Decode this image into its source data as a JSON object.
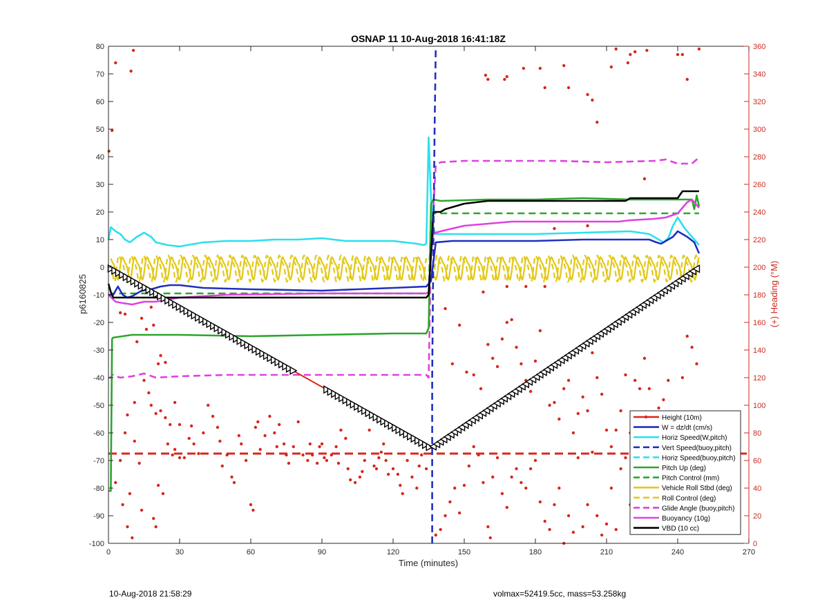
{
  "chart_data": {
    "type": "line",
    "title": "OSNAP 11 10-Aug-2018 16:41:18Z",
    "xlabel": "Time (minutes)",
    "ylabel": "p6160825",
    "y2label": "(+) Heading (°M)",
    "xlim": [
      0,
      270
    ],
    "ylim": [
      -100,
      80
    ],
    "y2lim": [
      0,
      360
    ],
    "xticks": [
      0,
      30,
      60,
      90,
      120,
      150,
      180,
      210,
      240,
      270
    ],
    "yticks": [
      -100,
      -90,
      -80,
      -70,
      -60,
      -50,
      -40,
      -30,
      -20,
      -10,
      0,
      10,
      20,
      30,
      40,
      50,
      60,
      70,
      80
    ],
    "y2ticks": [
      0,
      20,
      40,
      60,
      80,
      100,
      120,
      140,
      160,
      180,
      200,
      220,
      240,
      260,
      280,
      300,
      320,
      340,
      360
    ],
    "grid": false,
    "legend_position": "bottom-right",
    "vline_x": 136.5,
    "hline_y": -67.5,
    "series": [
      {
        "name": "Height (10m)",
        "color": "#d9261c",
        "style": "solid",
        "marker": "triangle",
        "x": [
          0,
          136,
          249
        ],
        "y": [
          0,
          -65.5,
          0
        ]
      },
      {
        "name": "W = dz/dt (cm/s)",
        "color": "#1f2fbf",
        "style": "solid",
        "x": [
          0,
          2,
          4,
          6,
          8,
          10,
          14,
          18,
          22,
          26,
          30,
          40,
          60,
          90,
          120,
          134,
          135,
          136,
          138,
          145,
          160,
          180,
          200,
          220,
          228,
          231,
          233,
          236,
          238,
          240,
          244,
          247,
          249
        ],
        "y": [
          -10,
          -10,
          -7,
          -10,
          -11,
          -10.5,
          -8.5,
          -8,
          -7,
          -6.5,
          -6.5,
          -7.5,
          -8,
          -8.5,
          -7.5,
          -7,
          -6,
          -5,
          9,
          9.5,
          9.5,
          9.5,
          10,
          10,
          10,
          9,
          8.5,
          10,
          11,
          13,
          11,
          9,
          5
        ]
      },
      {
        "name": "Horiz Speed(W,pitch)",
        "color": "#2ae0ee",
        "style": "solid",
        "x": [
          0,
          1,
          3,
          5,
          7,
          9,
          12,
          15,
          18,
          20,
          25,
          30,
          40,
          50,
          60,
          70,
          80,
          90,
          100,
          110,
          120,
          130,
          133,
          134,
          135,
          136,
          137,
          138,
          145,
          160,
          180,
          200,
          220,
          228,
          232,
          234,
          236,
          238,
          240,
          243,
          246,
          249
        ],
        "y": [
          10,
          14.5,
          13,
          12,
          10,
          9,
          11,
          12.5,
          11,
          9,
          8,
          7.5,
          9,
          9.5,
          9.5,
          10,
          10,
          10.5,
          9.5,
          9.5,
          9.5,
          8.5,
          8,
          8.5,
          47,
          25,
          14,
          12,
          12,
          12,
          12,
          12.5,
          13,
          12,
          10,
          9,
          10.5,
          15,
          18,
          14,
          11,
          8
        ]
      },
      {
        "name": "Vert Speed(buoy,pitch)",
        "color": "#1f2fbf",
        "style": "dashed",
        "x": [
          136.5,
          136.5,
          136.5,
          137,
          137.5,
          138
        ],
        "y": [
          -100,
          -85,
          -40,
          10,
          50,
          80
        ]
      },
      {
        "name": "Horiz Speed(buoy,pitch)",
        "color": "#2ae0ee",
        "style": "dashed",
        "x": [],
        "y": []
      },
      {
        "name": "Pitch Up (deg)",
        "color": "#2aa62a",
        "style": "solid",
        "x": [
          0,
          1,
          1.5,
          2,
          10,
          30,
          60,
          90,
          120,
          134,
          135,
          136,
          137,
          140,
          160,
          180,
          200,
          220,
          240,
          246,
          247,
          248,
          249
        ],
        "y": [
          -81,
          -81,
          -26,
          -25.5,
          -24.5,
          -24.5,
          -25,
          -24.5,
          -24,
          -24,
          -22,
          23,
          24.5,
          24,
          24.5,
          24.5,
          25,
          24.5,
          24.5,
          24.5,
          21,
          26,
          22
        ]
      },
      {
        "name": "Pitch Control (mm)",
        "color": "#2aa62a",
        "style": "dashed",
        "x": [
          0,
          1,
          2,
          134,
          135,
          136,
          137,
          249
        ],
        "y": [
          -10,
          -10,
          -9.5,
          -9.5,
          -9.5,
          19,
          19.5,
          19.5
        ]
      },
      {
        "name": "Vehicle Roll Stbd (deg)",
        "color": "#e3c919",
        "style": "solid",
        "x": [
          0,
          134,
          137,
          249
        ],
        "y": [
          0,
          0,
          0,
          0
        ]
      },
      {
        "name": "Roll Control (deg)",
        "color": "#e3c919",
        "style": "dashed",
        "x": [
          0,
          134,
          137,
          249
        ],
        "y": [
          0,
          0,
          0,
          0
        ]
      },
      {
        "name": "Glide Angle (buoy,pitch)",
        "color": "#e040e0",
        "style": "dashed",
        "x": [
          0,
          1,
          1.5,
          2,
          3,
          5,
          10,
          15,
          20,
          30,
          50,
          70,
          90,
          110,
          130,
          134,
          135,
          136,
          137,
          138,
          140,
          150,
          170,
          190,
          210,
          230,
          235,
          240,
          246,
          248,
          249
        ],
        "y": [
          -40,
          -40,
          -39,
          -39,
          -39.5,
          -40,
          -39.5,
          -38.5,
          -40,
          -39.5,
          -39,
          -39,
          -39,
          -39,
          -39,
          -39,
          -40,
          8,
          22,
          37,
          38,
          38.5,
          38.5,
          38.5,
          38,
          38.5,
          39,
          37.5,
          37.5,
          39,
          40
        ]
      },
      {
        "name": "Buoyancy (10g)",
        "color": "#e040e0",
        "style": "solid",
        "x": [
          0,
          3,
          6,
          10,
          15,
          20,
          30,
          50,
          90,
          120,
          130,
          134,
          135,
          136,
          137,
          138,
          140,
          150,
          170,
          200,
          215,
          220,
          230,
          235,
          240,
          244,
          246,
          249
        ],
        "y": [
          -10,
          -12.5,
          -13,
          -13.5,
          -12.5,
          -12.5,
          -11,
          -10,
          -9.5,
          -9.5,
          -9.5,
          -9.5,
          -9,
          5,
          12,
          12.5,
          13,
          15,
          16.5,
          16.5,
          16.5,
          17,
          17.5,
          18,
          19.5,
          23.5,
          24.5,
          21.5
        ]
      },
      {
        "name": "VBD (10 cc)",
        "color": "#000000",
        "style": "solid",
        "x": [
          0,
          1,
          2,
          3,
          134,
          135,
          136,
          137,
          140,
          142,
          150,
          160,
          200,
          218,
          220,
          240,
          242,
          249
        ],
        "y": [
          -6,
          -9,
          -11,
          -11,
          -11,
          -10,
          5,
          20,
          20,
          21,
          23,
          24,
          24,
          24,
          25,
          25,
          27.5,
          27.5
        ]
      }
    ],
    "heading_points": [
      [
        0.2,
        284
      ],
      [
        1.5,
        299
      ],
      [
        3,
        348
      ],
      [
        9.5,
        342
      ],
      [
        10.5,
        357
      ],
      [
        5,
        167
      ],
      [
        7,
        166
      ],
      [
        12,
        146
      ],
      [
        14,
        163
      ],
      [
        16,
        155
      ],
      [
        18,
        171
      ],
      [
        19,
        158
      ],
      [
        21,
        130
      ],
      [
        22,
        136
      ],
      [
        24,
        131
      ],
      [
        11,
        102
      ],
      [
        8,
        93
      ],
      [
        3,
        44
      ],
      [
        5,
        60
      ],
      [
        7,
        80
      ],
      [
        11,
        74
      ],
      [
        28,
        68
      ],
      [
        30,
        62
      ],
      [
        32,
        62
      ],
      [
        34,
        76
      ],
      [
        35,
        85
      ],
      [
        36,
        72
      ],
      [
        38,
        65
      ],
      [
        40,
        80
      ],
      [
        42,
        100
      ],
      [
        44,
        92
      ],
      [
        46,
        84
      ],
      [
        47,
        74
      ],
      [
        48,
        56
      ],
      [
        50,
        64
      ],
      [
        52,
        48
      ],
      [
        53,
        44
      ],
      [
        55,
        78
      ],
      [
        56,
        72
      ],
      [
        58,
        60
      ],
      [
        60,
        28
      ],
      [
        61,
        24
      ],
      [
        62,
        84
      ],
      [
        63,
        88
      ],
      [
        64,
        68
      ],
      [
        66,
        78
      ],
      [
        68,
        92
      ],
      [
        70,
        80
      ],
      [
        71,
        70
      ],
      [
        72,
        86
      ],
      [
        74,
        72
      ],
      [
        75,
        64
      ],
      [
        76,
        58
      ],
      [
        78,
        70
      ],
      [
        80,
        88
      ],
      [
        82,
        64
      ],
      [
        84,
        60
      ],
      [
        85,
        72
      ],
      [
        86,
        64
      ],
      [
        88,
        58
      ],
      [
        89,
        70
      ],
      [
        90,
        72
      ],
      [
        91,
        62
      ],
      [
        92,
        60
      ],
      [
        94,
        64
      ],
      [
        96,
        70
      ],
      [
        97,
        58
      ],
      [
        98,
        82
      ],
      [
        100,
        76
      ],
      [
        101,
        54
      ],
      [
        102,
        46
      ],
      [
        104,
        44
      ],
      [
        106,
        48
      ],
      [
        107,
        52
      ],
      [
        108,
        60
      ],
      [
        110,
        82
      ],
      [
        112,
        56
      ],
      [
        113,
        54
      ],
      [
        114,
        62
      ],
      [
        115,
        66
      ],
      [
        116,
        72
      ],
      [
        117,
        60
      ],
      [
        118,
        50
      ],
      [
        120,
        54
      ],
      [
        122,
        50
      ],
      [
        123,
        42
      ],
      [
        124,
        36
      ],
      [
        126,
        60
      ],
      [
        128,
        48
      ],
      [
        130,
        40
      ],
      [
        131,
        56
      ],
      [
        132,
        64
      ],
      [
        134,
        54
      ],
      [
        15,
        118
      ],
      [
        17,
        109
      ],
      [
        18,
        100
      ],
      [
        20,
        94
      ],
      [
        22,
        96
      ],
      [
        24,
        91
      ],
      [
        26,
        86
      ],
      [
        28,
        102
      ],
      [
        30,
        86
      ],
      [
        25,
        72
      ],
      [
        27,
        64
      ],
      [
        21,
        42
      ],
      [
        23,
        36
      ],
      [
        19,
        18
      ],
      [
        20,
        12
      ],
      [
        14,
        24
      ],
      [
        13,
        58
      ],
      [
        9,
        36
      ],
      [
        6,
        28
      ],
      [
        8,
        12
      ],
      [
        10,
        4
      ],
      [
        138,
        6
      ],
      [
        140,
        10
      ],
      [
        142,
        20
      ],
      [
        144,
        30
      ],
      [
        146,
        40
      ],
      [
        148,
        22
      ],
      [
        150,
        42
      ],
      [
        152,
        56
      ],
      [
        154,
        70
      ],
      [
        156,
        64
      ],
      [
        158,
        44
      ],
      [
        160,
        12
      ],
      [
        161,
        4
      ],
      [
        162,
        48
      ],
      [
        164,
        62
      ],
      [
        166,
        36
      ],
      [
        168,
        26
      ],
      [
        170,
        48
      ],
      [
        172,
        54
      ],
      [
        174,
        44
      ],
      [
        176,
        40
      ],
      [
        178,
        54
      ],
      [
        180,
        60
      ],
      [
        182,
        30
      ],
      [
        184,
        16
      ],
      [
        186,
        10
      ],
      [
        188,
        28
      ],
      [
        190,
        40
      ],
      [
        192,
        0
      ],
      [
        194,
        20
      ],
      [
        196,
        8
      ],
      [
        198,
        62
      ],
      [
        200,
        12
      ],
      [
        202,
        28
      ],
      [
        204,
        66
      ],
      [
        206,
        20
      ],
      [
        208,
        6
      ],
      [
        210,
        14
      ],
      [
        212,
        40
      ],
      [
        214,
        10
      ],
      [
        216,
        54
      ],
      [
        218,
        62
      ],
      [
        220,
        28
      ],
      [
        222,
        8
      ],
      [
        224,
        48
      ],
      [
        226,
        40
      ],
      [
        228,
        18
      ],
      [
        230,
        30
      ],
      [
        232,
        56
      ],
      [
        234,
        44
      ],
      [
        236,
        16
      ],
      [
        238,
        26
      ],
      [
        240,
        62
      ],
      [
        242,
        28
      ],
      [
        244,
        52
      ],
      [
        246,
        20
      ],
      [
        142,
        170
      ],
      [
        145,
        130
      ],
      [
        148,
        158
      ],
      [
        151,
        124
      ],
      [
        154,
        122
      ],
      [
        157,
        112
      ],
      [
        160,
        144
      ],
      [
        162,
        134
      ],
      [
        164,
        128
      ],
      [
        166,
        148
      ],
      [
        168,
        160
      ],
      [
        170,
        162
      ],
      [
        172,
        142
      ],
      [
        174,
        130
      ],
      [
        176,
        118
      ],
      [
        178,
        110
      ],
      [
        180,
        132
      ],
      [
        182,
        154
      ],
      [
        184,
        124
      ],
      [
        186,
        100
      ],
      [
        188,
        102
      ],
      [
        190,
        90
      ],
      [
        192,
        112
      ],
      [
        194,
        118
      ],
      [
        196,
        80
      ],
      [
        198,
        94
      ],
      [
        200,
        106
      ],
      [
        202,
        96
      ],
      [
        204,
        138
      ],
      [
        206,
        120
      ],
      [
        208,
        108
      ],
      [
        210,
        82
      ],
      [
        212,
        70
      ],
      [
        214,
        82
      ],
      [
        216,
        96
      ],
      [
        218,
        122
      ],
      [
        220,
        80
      ],
      [
        222,
        118
      ],
      [
        224,
        112
      ],
      [
        226,
        134
      ],
      [
        228,
        112
      ],
      [
        230,
        90
      ],
      [
        232,
        98
      ],
      [
        234,
        104
      ],
      [
        236,
        118
      ],
      [
        238,
        86
      ],
      [
        240,
        70
      ],
      [
        242,
        120
      ],
      [
        244,
        150
      ],
      [
        246,
        142
      ],
      [
        248,
        130
      ],
      [
        159,
        339
      ],
      [
        160,
        336
      ],
      [
        167,
        336
      ],
      [
        168,
        338
      ],
      [
        175,
        344
      ],
      [
        182,
        344
      ],
      [
        184,
        330
      ],
      [
        192,
        346
      ],
      [
        194,
        330
      ],
      [
        202,
        325
      ],
      [
        204,
        321
      ],
      [
        206,
        305
      ],
      [
        212,
        345
      ],
      [
        214,
        358
      ],
      [
        219,
        348
      ],
      [
        220,
        354
      ],
      [
        222,
        356
      ],
      [
        227,
        357
      ],
      [
        240,
        354
      ],
      [
        242,
        354
      ],
      [
        244,
        336
      ],
      [
        249,
        358
      ],
      [
        168,
        186
      ],
      [
        188,
        228
      ],
      [
        202,
        230
      ],
      [
        226,
        264
      ],
      [
        184,
        186
      ],
      [
        176,
        186
      ],
      [
        158,
        182
      ]
    ]
  },
  "footer": {
    "left": "10-Aug-2018 21:58:29",
    "right": "volmax=52419.5cc, mass=53.258kg"
  }
}
